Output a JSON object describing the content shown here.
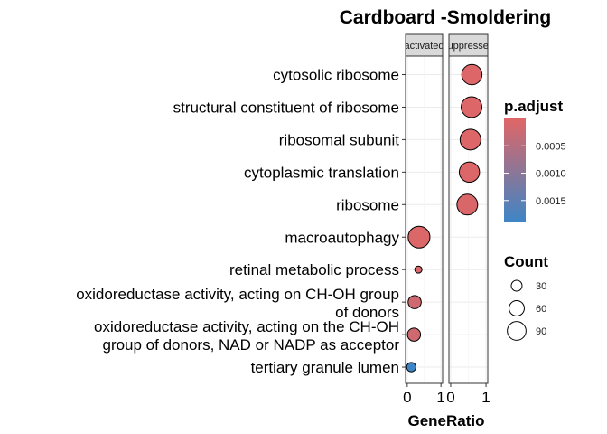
{
  "chart_data": {
    "type": "scatter",
    "title": "Cardboard -Smoldering",
    "xlabel": "GeneRatio",
    "ylabel": "",
    "facets": [
      {
        "name": "activated",
        "label": "activated",
        "xlim": [
          -0.05,
          1.05
        ],
        "ticks": [
          {
            "v": 0,
            "label": "0"
          },
          {
            "v": 1,
            "label": "1"
          }
        ]
      },
      {
        "name": "suppressed",
        "label": "suppressed",
        "xlim": [
          -0.05,
          1.05
        ],
        "ticks": [
          {
            "v": 0,
            "label": "0"
          },
          {
            "v": 1,
            "label": "1"
          }
        ]
      }
    ],
    "categories": [
      [
        "cytosolic ribosome"
      ],
      [
        "structural constituent of ribosome"
      ],
      [
        "ribosomal subunit"
      ],
      [
        "cytoplasmic translation"
      ],
      [
        "ribosome"
      ],
      [
        "macroautophagy"
      ],
      [
        "retinal metabolic process"
      ],
      [
        "oxidoreductase activity, acting on CH-OH group",
        "of donors"
      ],
      [
        "oxidoreductase activity, acting on the CH-OH",
        "group of donors, NAD or NADP as acceptor"
      ],
      [
        "tertiary granule lumen"
      ]
    ],
    "points": [
      {
        "category": 0,
        "facet": "suppressed",
        "gene_ratio": 0.6,
        "count": 95,
        "p_adjust": 3e-05
      },
      {
        "category": 1,
        "facet": "suppressed",
        "gene_ratio": 0.59,
        "count": 100,
        "p_adjust": 3e-05
      },
      {
        "category": 2,
        "facet": "suppressed",
        "gene_ratio": 0.56,
        "count": 100,
        "p_adjust": 4e-05
      },
      {
        "category": 3,
        "facet": "suppressed",
        "gene_ratio": 0.53,
        "count": 95,
        "p_adjust": 5e-05
      },
      {
        "category": 4,
        "facet": "suppressed",
        "gene_ratio": 0.47,
        "count": 100,
        "p_adjust": 8e-05
      },
      {
        "category": 5,
        "facet": "activated",
        "gene_ratio": 0.35,
        "count": 110,
        "p_adjust": 5e-05
      },
      {
        "category": 6,
        "facet": "activated",
        "gene_ratio": 0.33,
        "count": 12,
        "p_adjust": 0.0001
      },
      {
        "category": 7,
        "facet": "activated",
        "gene_ratio": 0.22,
        "count": 40,
        "p_adjust": 0.0002
      },
      {
        "category": 8,
        "facet": "activated",
        "gene_ratio": 0.2,
        "count": 40,
        "p_adjust": 0.0002
      },
      {
        "category": 9,
        "facet": "activated",
        "gene_ratio": 0.12,
        "count": 20,
        "p_adjust": 0.0019
      }
    ],
    "color_legend": {
      "title": "p.adjust",
      "range": [
        0,
        0.0019
      ],
      "low_color": "#E06666",
      "high_color": "#3D85C6",
      "ticks": [
        {
          "v": 0.0005,
          "label": "0.0005"
        },
        {
          "v": 0.001,
          "label": "0.0010"
        },
        {
          "v": 0.0015,
          "label": "0.0015"
        }
      ]
    },
    "size_legend": {
      "title": "Count",
      "entries": [
        {
          "v": 30,
          "label": "30"
        },
        {
          "v": 60,
          "label": "60"
        },
        {
          "v": 90,
          "label": "90"
        }
      ]
    },
    "grid": true,
    "legend_position": "right"
  }
}
